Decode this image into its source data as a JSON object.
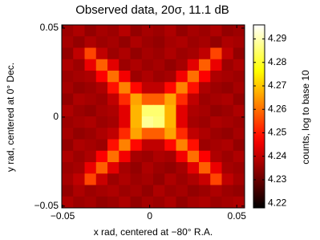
{
  "chart_data": {
    "type": "heatmap",
    "title": "Observed data, 20σ, 11.1 dB",
    "xlabel": "x rad, centered at −80° R.A.",
    "ylabel": "y rad, centered at 0° Dec.",
    "colorbar_label": "counts, log to base 10",
    "colormap": "hot",
    "xlim": [
      -0.0505,
      0.0545
    ],
    "ylim": [
      -0.051,
      0.0518
    ],
    "xticks": [
      {
        "value": -0.05,
        "label": "−0.05"
      },
      0,
      0.05
    ],
    "yticks": [
      {
        "value": -0.05,
        "label": "−0.05"
      },
      0,
      0.05
    ],
    "clim": [
      4.218,
      4.296
    ],
    "cticks": [
      4.22,
      4.23,
      4.24,
      4.25,
      4.26,
      4.27,
      4.28,
      4.29
    ],
    "z": [
      [
        4.236,
        4.238,
        4.235,
        4.237,
        4.236,
        4.239,
        4.235,
        4.237,
        4.236,
        4.238,
        4.235,
        4.237,
        4.236,
        4.238,
        4.235,
        4.236
      ],
      [
        4.237,
        4.235,
        4.238,
        4.236,
        4.237,
        4.235,
        4.238,
        4.236,
        4.235,
        4.237,
        4.238,
        4.236,
        4.237,
        4.235,
        4.238,
        4.237
      ],
      [
        4.235,
        4.24,
        4.255,
        4.24,
        4.236,
        4.238,
        4.235,
        4.237,
        4.236,
        4.238,
        4.236,
        4.237,
        4.24,
        4.255,
        4.24,
        4.235
      ],
      [
        4.238,
        4.236,
        4.245,
        4.258,
        4.244,
        4.236,
        4.238,
        4.236,
        4.237,
        4.235,
        4.237,
        4.244,
        4.258,
        4.245,
        4.236,
        4.238
      ],
      [
        4.236,
        4.237,
        4.238,
        4.247,
        4.26,
        4.246,
        4.236,
        4.238,
        4.236,
        4.237,
        4.246,
        4.26,
        4.247,
        4.238,
        4.237,
        4.236
      ],
      [
        4.237,
        4.235,
        4.236,
        4.238,
        4.249,
        4.262,
        4.248,
        4.24,
        4.24,
        4.248,
        4.262,
        4.249,
        4.238,
        4.236,
        4.235,
        4.237
      ],
      [
        4.235,
        4.238,
        4.237,
        4.236,
        4.24,
        4.252,
        4.266,
        4.258,
        4.258,
        4.266,
        4.252,
        4.24,
        4.236,
        4.237,
        4.238,
        4.235
      ],
      [
        4.238,
        4.236,
        4.235,
        4.237,
        4.238,
        4.244,
        4.268,
        4.285,
        4.285,
        4.268,
        4.244,
        4.238,
        4.237,
        4.235,
        4.236,
        4.238
      ],
      [
        4.236,
        4.237,
        4.238,
        4.236,
        4.237,
        4.244,
        4.268,
        4.288,
        4.286,
        4.268,
        4.244,
        4.237,
        4.236,
        4.238,
        4.237,
        4.236
      ],
      [
        4.237,
        4.235,
        4.236,
        4.238,
        4.24,
        4.252,
        4.266,
        4.258,
        4.258,
        4.266,
        4.252,
        4.24,
        4.238,
        4.236,
        4.235,
        4.237
      ],
      [
        4.235,
        4.238,
        4.237,
        4.236,
        4.249,
        4.262,
        4.248,
        4.24,
        4.24,
        4.248,
        4.262,
        4.249,
        4.236,
        4.237,
        4.238,
        4.235
      ],
      [
        4.238,
        4.236,
        4.238,
        4.247,
        4.26,
        4.246,
        4.237,
        4.236,
        4.238,
        4.237,
        4.246,
        4.26,
        4.247,
        4.238,
        4.236,
        4.238
      ],
      [
        4.236,
        4.237,
        4.245,
        4.258,
        4.244,
        4.237,
        4.235,
        4.238,
        4.236,
        4.235,
        4.237,
        4.244,
        4.258,
        4.245,
        4.237,
        4.236
      ],
      [
        4.237,
        4.24,
        4.255,
        4.241,
        4.236,
        4.238,
        4.236,
        4.237,
        4.235,
        4.238,
        4.236,
        4.238,
        4.241,
        4.255,
        4.24,
        4.237
      ],
      [
        4.235,
        4.238,
        4.236,
        4.237,
        4.238,
        4.236,
        4.237,
        4.235,
        4.238,
        4.236,
        4.237,
        4.235,
        4.236,
        4.238,
        4.236,
        4.235
      ],
      [
        4.238,
        4.236,
        4.237,
        4.235,
        4.236,
        4.238,
        4.235,
        4.237,
        4.236,
        4.238,
        4.235,
        4.237,
        4.238,
        4.236,
        4.237,
        4.238
      ]
    ]
  }
}
